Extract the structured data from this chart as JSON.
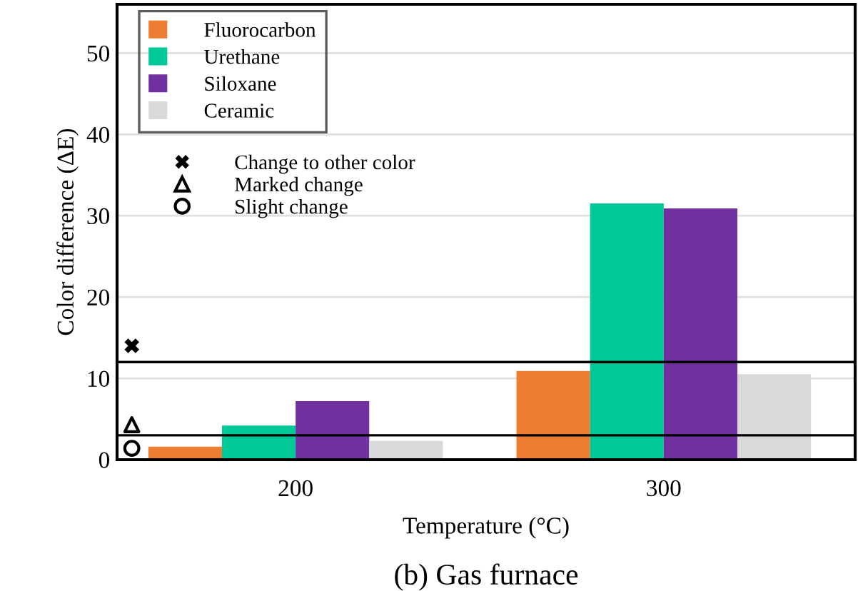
{
  "chart_data": {
    "type": "bar",
    "title": "(b) Gas furnace",
    "xlabel": "Temperature (°C)",
    "ylabel": "Color difference (ΔE)",
    "categories": [
      "200",
      "300"
    ],
    "series": [
      {
        "name": "Fluorocarbon",
        "color": "#ed7d31",
        "values": [
          1.6,
          10.9
        ]
      },
      {
        "name": "Urethane",
        "color": "#00c896",
        "values": [
          4.2,
          31.5
        ]
      },
      {
        "name": "Siloxane",
        "color": "#7030a0",
        "values": [
          7.2,
          30.9
        ]
      },
      {
        "name": "Ceramic",
        "color": "#d9d9d9",
        "values": [
          2.3,
          10.5
        ]
      },
      {
        "name": "Change to other color",
        "type": "scatter",
        "marker": "cross",
        "color": "#000000",
        "values": [
          14,
          null
        ]
      },
      {
        "name": "Marked change",
        "type": "scatter",
        "marker": "triangle",
        "color": "#000000",
        "values": [
          4.3,
          null
        ]
      },
      {
        "name": "Slight change",
        "type": "scatter",
        "marker": "circle",
        "color": "#000000",
        "values": [
          1.4,
          null
        ]
      }
    ],
    "ref_lines": [
      {
        "axis": "y",
        "value": 12,
        "color": "#000000"
      },
      {
        "axis": "y",
        "value": 3,
        "color": "#000000"
      }
    ],
    "ylim": [
      0,
      56
    ],
    "yticks": [
      0,
      10,
      20,
      30,
      40,
      50
    ],
    "grid": "y",
    "legend": "top left"
  }
}
